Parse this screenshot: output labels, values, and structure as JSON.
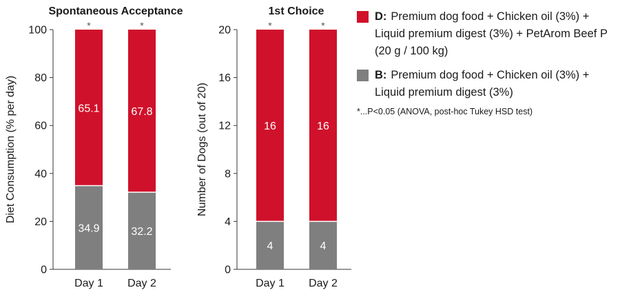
{
  "colors": {
    "D": "#d0112b",
    "B": "#7f7f7f"
  },
  "chart_data": [
    {
      "type": "bar",
      "stacked": true,
      "title": "Spontaneous Acceptance",
      "ylabel": "Diet Consumption (% per day)",
      "xlabel": "",
      "categories": [
        "Day 1",
        "Day 2"
      ],
      "yticks": [
        "0",
        "20",
        "40",
        "60",
        "80",
        "100"
      ],
      "ylim": [
        0,
        100
      ],
      "series": [
        {
          "name": "B",
          "values": [
            34.9,
            32.2
          ],
          "labels": [
            "34.9",
            "32.2"
          ]
        },
        {
          "name": "D",
          "values": [
            65.1,
            67.8
          ],
          "labels": [
            "65.1",
            "67.8"
          ]
        }
      ],
      "annotations": [
        "*",
        "*"
      ]
    },
    {
      "type": "bar",
      "stacked": true,
      "title": "1st Choice",
      "ylabel": "Number of Dogs (out of 20)",
      "xlabel": "",
      "categories": [
        "Day 1",
        "Day 2"
      ],
      "yticks": [
        "0",
        "4",
        "8",
        "12",
        "16",
        "20"
      ],
      "ylim": [
        0,
        20
      ],
      "series": [
        {
          "name": "B",
          "values": [
            4,
            4
          ],
          "labels": [
            "4",
            "4"
          ]
        },
        {
          "name": "D",
          "values": [
            16,
            16
          ],
          "labels": [
            "16",
            "16"
          ]
        }
      ],
      "annotations": [
        "*",
        "*"
      ]
    }
  ],
  "legend": [
    {
      "key": "D:",
      "text": "Premium dog food + Chicken oil (3%) + Liquid premium digest (3%) + PetArom Beef P (20 g / 100 kg)",
      "color": "#d0112b"
    },
    {
      "key": "B:",
      "text": "Premium dog food + Chicken oil (3%) + Liquid premium digest (3%)",
      "color": "#7f7f7f"
    }
  ],
  "footnote": "*...P<0.05 (ANOVA, post-hoc Tukey HSD test)"
}
